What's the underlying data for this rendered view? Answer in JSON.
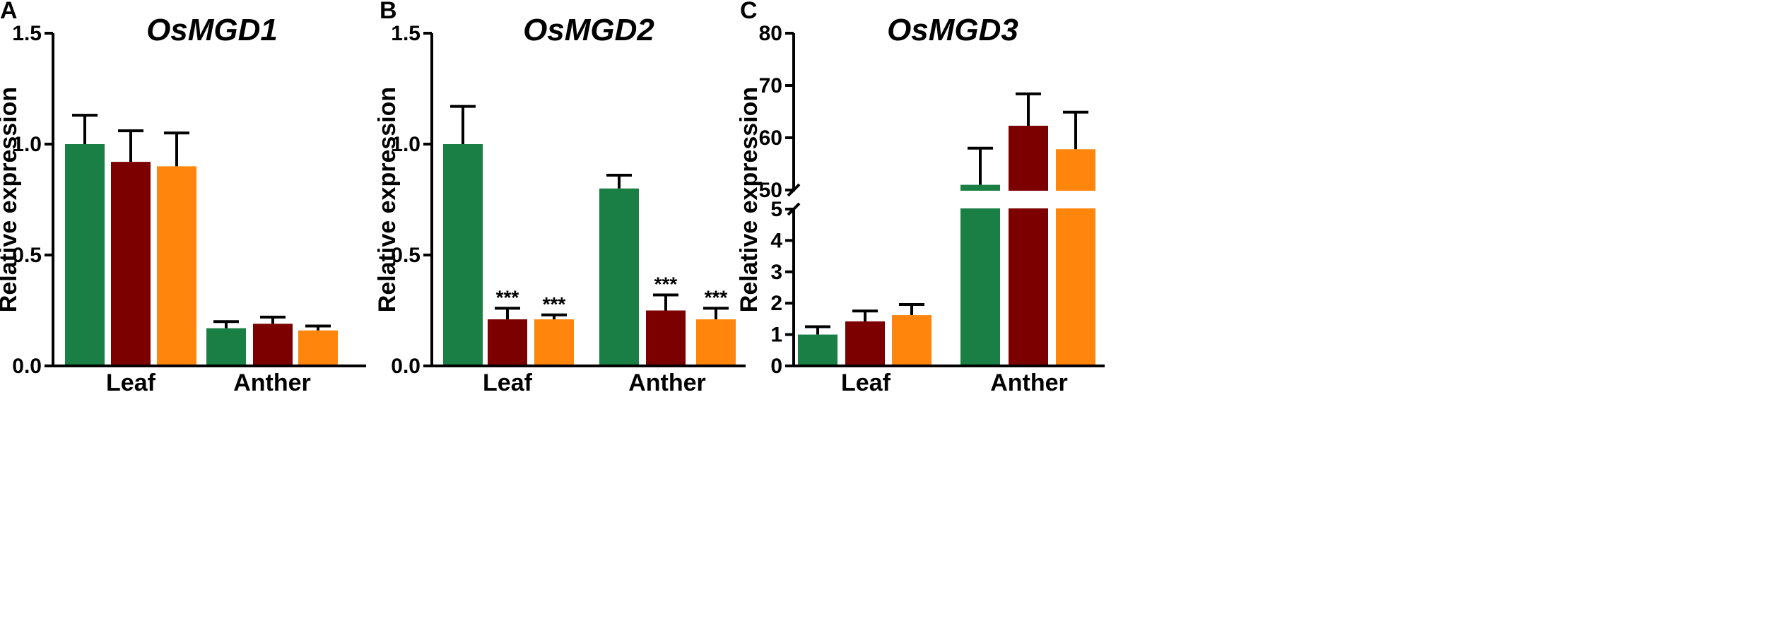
{
  "colors": {
    "WT": "#1a7f44",
    "line2": "#7d0000",
    "line3": "#ff850d",
    "axis": "#000000"
  },
  "chart_data": [
    {
      "type": "bar",
      "panel_label": "A",
      "title": "OsMGD1",
      "xlabel": "",
      "ylabel": "Relative expression",
      "ylim": [
        0,
        1.5
      ],
      "yticks": [
        0.0,
        0.5,
        1.0,
        1.5
      ],
      "ytick_labels": [
        "0.0",
        "0.5",
        "1.0",
        "1.5"
      ],
      "categories": [
        "Leaf",
        "Anther"
      ],
      "series": [
        {
          "name": "bar1",
          "color": "#1a7f44",
          "values": [
            1.0,
            0.17
          ],
          "errors": [
            0.13,
            0.03
          ],
          "sig": [
            "",
            ""
          ]
        },
        {
          "name": "bar2",
          "color": "#7d0000",
          "values": [
            0.92,
            0.19
          ],
          "errors": [
            0.14,
            0.03
          ],
          "sig": [
            "",
            ""
          ]
        },
        {
          "name": "bar3",
          "color": "#ff850d",
          "values": [
            0.9,
            0.16
          ],
          "errors": [
            0.15,
            0.02
          ],
          "sig": [
            "",
            ""
          ]
        }
      ]
    },
    {
      "type": "bar",
      "panel_label": "B",
      "title": "OsMGD2",
      "xlabel": "",
      "ylabel": "Relative expression",
      "ylim": [
        0,
        1.5
      ],
      "yticks": [
        0.0,
        0.5,
        1.0,
        1.5
      ],
      "ytick_labels": [
        "0.0",
        "0.5",
        "1.0",
        "1.5"
      ],
      "categories": [
        "Leaf",
        "Anther"
      ],
      "series": [
        {
          "name": "bar1",
          "color": "#1a7f44",
          "values": [
            1.0,
            0.8
          ],
          "errors": [
            0.17,
            0.06
          ],
          "sig": [
            "",
            ""
          ]
        },
        {
          "name": "bar2",
          "color": "#7d0000",
          "values": [
            0.21,
            0.25
          ],
          "errors": [
            0.05,
            0.07
          ],
          "sig": [
            "***",
            "***"
          ]
        },
        {
          "name": "bar3",
          "color": "#ff850d",
          "values": [
            0.21,
            0.21
          ],
          "errors": [
            0.02,
            0.05
          ],
          "sig": [
            "***",
            "***"
          ]
        }
      ]
    },
    {
      "type": "bar",
      "panel_label": "C",
      "title": "OsMGD3",
      "xlabel": "",
      "ylabel": "Relative expression",
      "ylim": [
        0,
        80
      ],
      "axis_break": [
        5,
        50
      ],
      "yticks": [
        0,
        1,
        2,
        3,
        4,
        5,
        50,
        60,
        70,
        80
      ],
      "ytick_labels": [
        "0",
        "1",
        "2",
        "3",
        "4",
        "5",
        "50",
        "60",
        "70",
        "80"
      ],
      "categories": [
        "Leaf",
        "Anther"
      ],
      "series": [
        {
          "name": "bar1",
          "color": "#1a7f44",
          "values": [
            1.0,
            51.0
          ],
          "errors": [
            0.25,
            7.0
          ],
          "sig": [
            "",
            ""
          ]
        },
        {
          "name": "bar2",
          "color": "#7d0000",
          "values": [
            1.42,
            62.3
          ],
          "errors": [
            0.33,
            6.1
          ],
          "sig": [
            "",
            ""
          ]
        },
        {
          "name": "bar3",
          "color": "#ff850d",
          "values": [
            1.62,
            57.8
          ],
          "errors": [
            0.34,
            7.1
          ],
          "sig": [
            "",
            ""
          ]
        }
      ]
    }
  ]
}
